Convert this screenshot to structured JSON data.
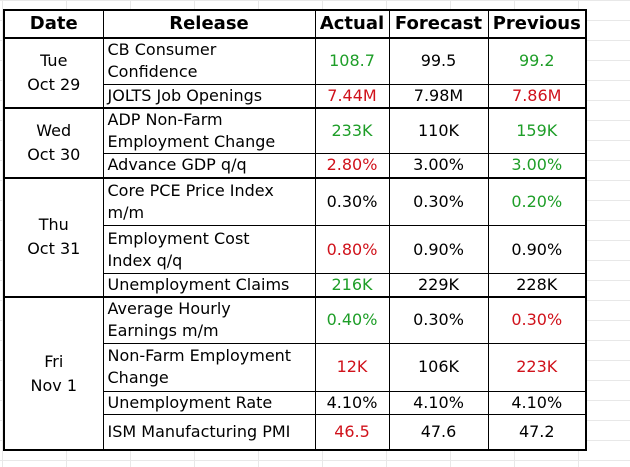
{
  "headers": {
    "date": "Date",
    "release": "Release",
    "actual": "Actual",
    "forecast": "Forecast",
    "previous": "Previous"
  },
  "colors": {
    "green": "#1e9e28",
    "red": "#d0121b",
    "black": "#000000"
  },
  "groups": [
    {
      "day": "Tue",
      "date": "Oct 29",
      "rows": [
        {
          "release": [
            "CB Consumer",
            "Confidence"
          ],
          "actual": "108.7",
          "actual_color": "green",
          "forecast": "99.5",
          "previous": "99.2",
          "previous_color": "green"
        },
        {
          "release": [
            "JOLTS Job Openings"
          ],
          "actual": "7.44M",
          "actual_color": "red",
          "forecast": "7.98M",
          "previous": "7.86M",
          "previous_color": "red"
        }
      ]
    },
    {
      "day": "Wed",
      "date": "Oct 30",
      "rows": [
        {
          "release": [
            "ADP Non-Farm",
            "Employment Change"
          ],
          "actual": "233K",
          "actual_color": "green",
          "forecast": "110K",
          "previous": "159K",
          "previous_color": "green"
        },
        {
          "release": [
            "Advance GDP q/q"
          ],
          "actual": "2.80%",
          "actual_color": "red",
          "forecast": "3.00%",
          "previous": "3.00%",
          "previous_color": "green"
        }
      ]
    },
    {
      "day": "Thu",
      "date": "Oct 31",
      "rows": [
        {
          "release": [
            "Core PCE Price Index",
            "m/m"
          ],
          "actual": "0.30%",
          "actual_color": "black",
          "forecast": "0.30%",
          "previous": "0.20%",
          "previous_color": "green"
        },
        {
          "release": [
            "Employment Cost",
            "Index q/q"
          ],
          "actual": "0.80%",
          "actual_color": "red",
          "forecast": "0.90%",
          "previous": "0.90%",
          "previous_color": "black"
        },
        {
          "release": [
            "Unemployment Claims"
          ],
          "actual": "216K",
          "actual_color": "green",
          "forecast": "229K",
          "previous": "228K",
          "previous_color": "black"
        }
      ]
    },
    {
      "day": "Fri",
      "date": "Nov 1",
      "rows": [
        {
          "release": [
            "Average Hourly",
            "Earnings m/m"
          ],
          "actual": "0.40%",
          "actual_color": "green",
          "forecast": "0.30%",
          "previous": "0.30%",
          "previous_color": "red"
        },
        {
          "release": [
            "Non-Farm Employment",
            "Change"
          ],
          "actual": "12K",
          "actual_color": "red",
          "forecast": "106K",
          "previous": "223K",
          "previous_color": "red"
        },
        {
          "release": [
            "Unemployment Rate"
          ],
          "actual": "4.10%",
          "actual_color": "black",
          "forecast": "4.10%",
          "previous": "4.10%",
          "previous_color": "black"
        },
        {
          "release": [
            "ISM Manufacturing PMI"
          ],
          "actual": "46.5",
          "actual_color": "red",
          "forecast": "47.6",
          "previous": "47.2",
          "previous_color": "black"
        }
      ]
    }
  ]
}
